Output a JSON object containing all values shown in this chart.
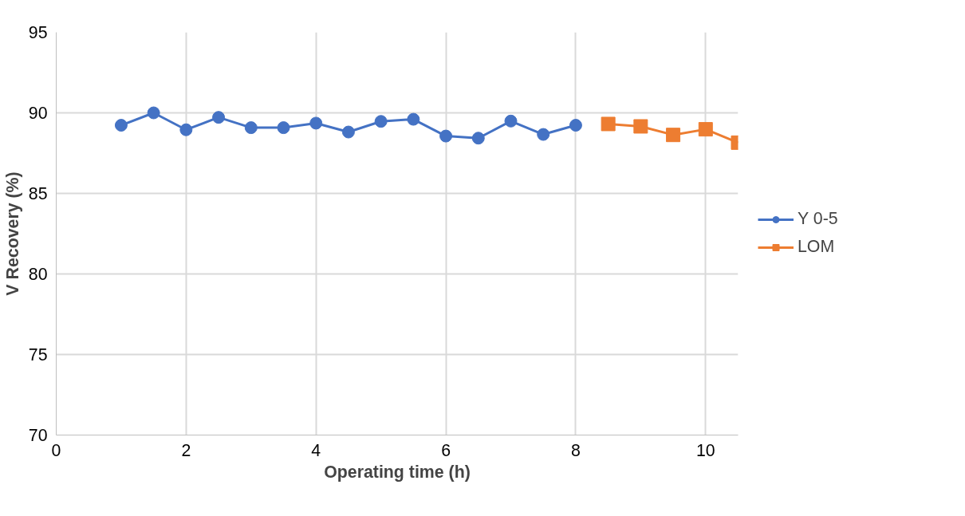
{
  "chart_data": {
    "type": "line",
    "xlabel": "Operating time (h)",
    "ylabel": "V Recovery (%)",
    "xlim": [
      0,
      10.5
    ],
    "xticks": [
      0,
      2,
      4,
      6,
      8,
      10
    ],
    "ylim": [
      70,
      95
    ],
    "yticks": [
      70,
      75,
      80,
      85,
      90,
      95
    ],
    "grid": true,
    "legend": "right",
    "series": [
      {
        "name": "Y 0-5",
        "color": "#4472c4",
        "marker": "circle",
        "x": [
          1,
          1.5,
          2,
          2.5,
          3,
          3.5,
          4,
          4.5,
          5,
          5.5,
          6,
          6.5,
          7,
          7.5,
          8
        ],
        "values": [
          89.23,
          90.0,
          88.95,
          89.72,
          89.08,
          89.08,
          89.36,
          88.81,
          89.47,
          89.6,
          88.56,
          88.43,
          89.49,
          88.66,
          89.23
        ]
      },
      {
        "name": "LOM",
        "color": "#ed7d31",
        "marker": "square",
        "x": [
          8.5,
          9,
          9.5,
          10,
          10.5
        ],
        "values": [
          89.31,
          89.16,
          88.63,
          88.98,
          88.15
        ]
      }
    ]
  }
}
